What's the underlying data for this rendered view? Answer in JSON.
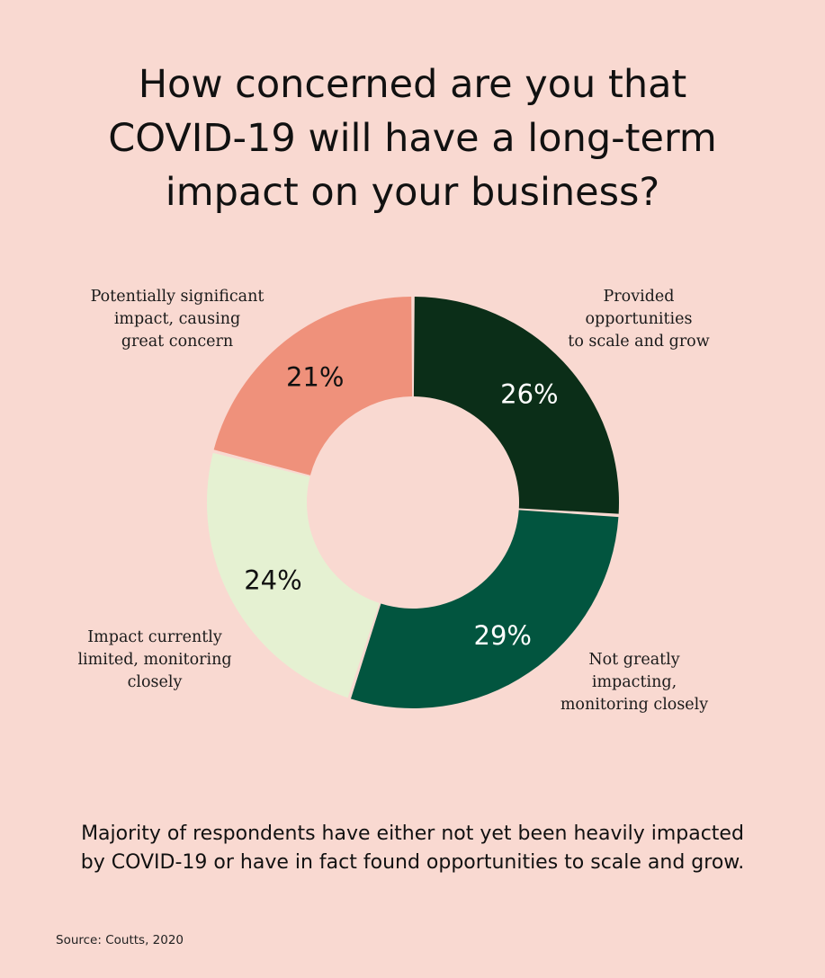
{
  "title_lines": [
    "How concerned are you that",
    "COVID-19 will have a long-term",
    "impact on your business?"
  ],
  "chart_data": {
    "type": "pie",
    "variant": "donut",
    "title": "How concerned are you that COVID-19 will have a long-term impact on your business?",
    "slices": [
      {
        "label_lines": [
          "Provided",
          "opportunities",
          "to scale and grow"
        ],
        "value": 26,
        "value_label": "26%",
        "color": "#0b2e18",
        "text_color": "#ffffff"
      },
      {
        "label_lines": [
          "Not greatly",
          "impacting,",
          "monitoring closely"
        ],
        "value": 29,
        "value_label": "29%",
        "color": "#02553f",
        "text_color": "#ffffff"
      },
      {
        "label_lines": [
          "Impact currently",
          "limited, monitoring",
          "closely"
        ],
        "value": 24,
        "value_label": "24%",
        "color": "#e5f1d2",
        "text_color": "#111111"
      },
      {
        "label_lines": [
          "Potentially significant",
          "impact, causing",
          "great concern"
        ],
        "value": 21,
        "value_label": "21%",
        "color": "#ef917b",
        "text_color": "#111111"
      }
    ],
    "legend": "none"
  },
  "summary_lines": [
    "Majority of respondents have either not yet been heavily impacted",
    "by COVID-19 or have in fact found opportunities to scale and grow."
  ],
  "source": "Source: Coutts, 2020",
  "colors": {
    "background": "#f9d9d1"
  }
}
